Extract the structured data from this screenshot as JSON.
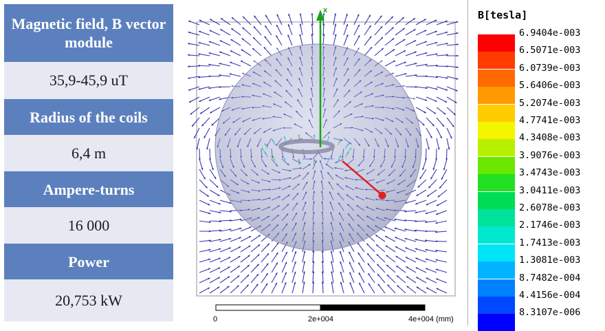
{
  "table": {
    "rows": [
      {
        "header": "Magnetic field, B vector module",
        "value": "35,9-45,9 uT"
      },
      {
        "header": "Radius of the coils",
        "value": "6,4 m"
      },
      {
        "header": "Ampere-turns",
        "value": "16 000"
      },
      {
        "header": "Power",
        "value": "20,753 kW"
      }
    ]
  },
  "view": {
    "axis_label": "x",
    "scale_labels": [
      "0",
      "2e+004",
      "4e+004 (mm)"
    ],
    "colors": {
      "arrow": "#2222aa",
      "sphere": "#9aa0c4",
      "axis": "#14a514",
      "marker": "#dd2222",
      "ring": "#8c8ca8"
    }
  },
  "legend": {
    "title": "B[tesla]",
    "entries": [
      {
        "label": "6.9404e-003",
        "color": "#ff0000"
      },
      {
        "label": "6.5071e-003",
        "color": "#ff3b00"
      },
      {
        "label": "6.0739e-003",
        "color": "#ff6a00"
      },
      {
        "label": "5.6406e-003",
        "color": "#ff9a00"
      },
      {
        "label": "5.2074e-003",
        "color": "#ffcc00"
      },
      {
        "label": "4.7741e-003",
        "color": "#f5f500"
      },
      {
        "label": "4.3408e-003",
        "color": "#b8f000"
      },
      {
        "label": "3.9076e-003",
        "color": "#6ae800"
      },
      {
        "label": "3.4743e-003",
        "color": "#22e022"
      },
      {
        "label": "3.0411e-003",
        "color": "#00dd55"
      },
      {
        "label": "2.6078e-003",
        "color": "#00e39a"
      },
      {
        "label": "2.1746e-003",
        "color": "#00e8cf"
      },
      {
        "label": "1.7413e-003",
        "color": "#00e4f7"
      },
      {
        "label": "1.3081e-003",
        "color": "#00b4ff"
      },
      {
        "label": "8.7482e-004",
        "color": "#0082ff"
      },
      {
        "label": "4.4156e-004",
        "color": "#0048ff"
      },
      {
        "label": "8.3107e-006",
        "color": "#0000ff"
      }
    ]
  }
}
